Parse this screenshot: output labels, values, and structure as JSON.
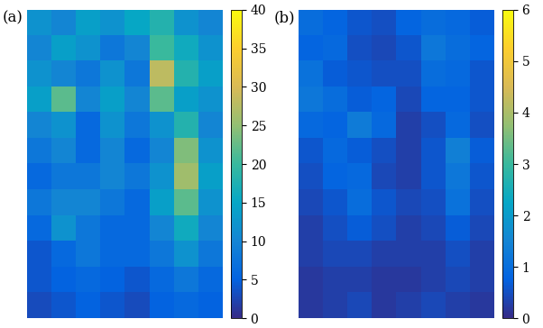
{
  "chart_data": [
    {
      "type": "heatmap",
      "title": "(a)",
      "tick_labels": false,
      "cells": [
        [
          12,
          10,
          14,
          12,
          15,
          18,
          12,
          10
        ],
        [
          10,
          14,
          12,
          8,
          10,
          20,
          16,
          12
        ],
        [
          12,
          10,
          8,
          12,
          8,
          28,
          18,
          14
        ],
        [
          14,
          22,
          10,
          14,
          10,
          22,
          14,
          12
        ],
        [
          10,
          12,
          6,
          12,
          8,
          12,
          18,
          10
        ],
        [
          8,
          10,
          6,
          10,
          6,
          10,
          24,
          12
        ],
        [
          6,
          8,
          8,
          10,
          8,
          12,
          26,
          14
        ],
        [
          8,
          10,
          10,
          8,
          6,
          14,
          22,
          12
        ],
        [
          6,
          12,
          8,
          6,
          6,
          10,
          16,
          10
        ],
        [
          4,
          6,
          8,
          6,
          6,
          8,
          12,
          8
        ],
        [
          4,
          5,
          6,
          5,
          4,
          6,
          8,
          6
        ],
        [
          3,
          4,
          5,
          4,
          3,
          5,
          6,
          5
        ]
      ],
      "colorbar_range": [
        0,
        40
      ],
      "colorbar_ticks": [
        0,
        5,
        10,
        15,
        20,
        25,
        30,
        35,
        40
      ]
    },
    {
      "type": "heatmap",
      "title": "(b)",
      "tick_labels": false,
      "cells": [
        [
          1.0,
          0.8,
          0.6,
          0.5,
          0.8,
          1.0,
          0.9,
          0.7
        ],
        [
          0.8,
          0.9,
          0.5,
          0.4,
          0.6,
          1.2,
          1.0,
          0.8
        ],
        [
          1.1,
          0.7,
          0.6,
          0.5,
          0.5,
          1.0,
          0.9,
          0.6
        ],
        [
          1.2,
          1.0,
          0.7,
          0.8,
          0.4,
          0.8,
          0.8,
          0.6
        ],
        [
          0.9,
          0.8,
          1.3,
          0.9,
          0.3,
          0.5,
          0.9,
          0.5
        ],
        [
          0.6,
          0.9,
          0.7,
          0.5,
          0.3,
          0.6,
          1.4,
          0.7
        ],
        [
          0.5,
          0.8,
          0.9,
          0.4,
          0.3,
          0.6,
          1.2,
          0.6
        ],
        [
          0.4,
          0.6,
          1.0,
          0.6,
          0.4,
          0.5,
          1.1,
          0.5
        ],
        [
          0.3,
          0.5,
          0.7,
          0.5,
          0.3,
          0.4,
          0.7,
          0.4
        ],
        [
          0.3,
          0.4,
          0.4,
          0.3,
          0.3,
          0.3,
          0.5,
          0.3
        ],
        [
          0.2,
          0.3,
          0.3,
          0.2,
          0.2,
          0.3,
          0.4,
          0.3
        ],
        [
          0.2,
          0.3,
          0.4,
          0.2,
          0.3,
          0.4,
          0.3,
          0.2
        ]
      ],
      "colorbar_range": [
        0,
        6
      ],
      "colorbar_ticks": [
        0,
        1,
        2,
        3,
        4,
        5,
        6
      ]
    }
  ]
}
